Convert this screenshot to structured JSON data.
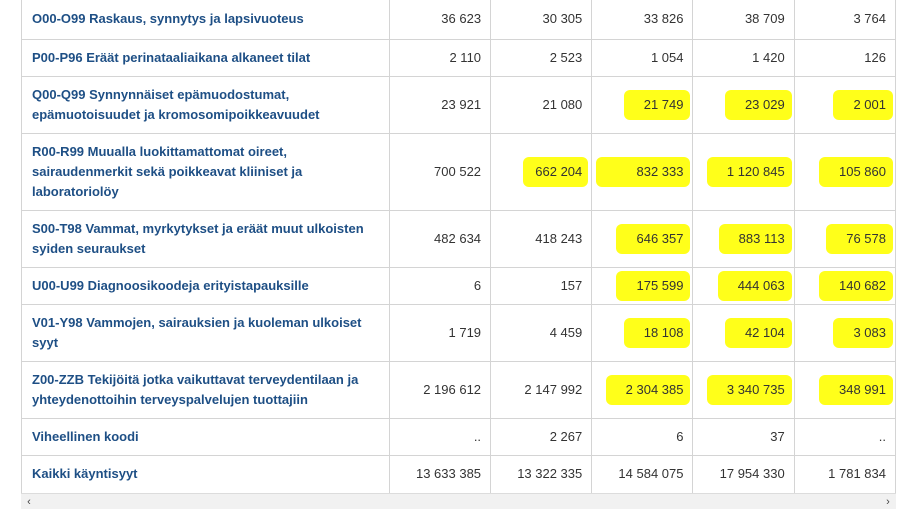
{
  "colors": {
    "label_text": "#1e4f85",
    "number_text": "#333333",
    "highlight": "#ffff1a",
    "border": "#d4d4d4"
  },
  "table": {
    "rows": [
      {
        "label": "O00-O99 Raskaus, synnytys ja lapsivuoteus",
        "values": [
          "36 623",
          "30 305",
          "33 826",
          "38 709",
          "3 764"
        ],
        "highlighted": [
          false,
          false,
          false,
          false,
          false
        ]
      },
      {
        "label": "P00-P96 Eräät perinataaliaikana alkaneet tilat",
        "values": [
          "2 110",
          "2 523",
          "1 054",
          "1 420",
          "126"
        ],
        "highlighted": [
          false,
          false,
          false,
          false,
          false
        ]
      },
      {
        "label": "Q00-Q99 Synnynnäiset epämuodostumat, epämuotoisuudet ja kromosomipoikkeavuudet",
        "values": [
          "23 921",
          "21 080",
          "21 749",
          "23 029",
          "2 001"
        ],
        "highlighted": [
          false,
          false,
          true,
          true,
          true
        ]
      },
      {
        "label": "R00-R99 Muualla luokittamattomat oireet, sairaudenmerkit sekä poikkeavat kliiniset ja laboratoriolöy",
        "values": [
          "700 522",
          "662 204",
          "832 333",
          "1 120 845",
          "105 860"
        ],
        "highlighted": [
          false,
          true,
          true,
          true,
          true
        ]
      },
      {
        "label": "S00-T98 Vammat, myrkytykset ja eräät muut ulkoisten syiden seuraukset",
        "values": [
          "482 634",
          "418 243",
          "646 357",
          "883 113",
          "76 578"
        ],
        "highlighted": [
          false,
          false,
          true,
          true,
          true
        ]
      },
      {
        "label": "U00-U99 Diagnoosikoodeja erityistapauksille",
        "values": [
          "6",
          "157",
          "175 599",
          "444 063",
          "140 682"
        ],
        "highlighted": [
          false,
          false,
          true,
          true,
          true
        ]
      },
      {
        "label": "V01-Y98 Vammojen, sairauksien ja kuoleman ulkoiset syyt",
        "values": [
          "1 719",
          "4 459",
          "18 108",
          "42 104",
          "3 083"
        ],
        "highlighted": [
          false,
          false,
          true,
          true,
          true
        ]
      },
      {
        "label": "Z00-ZZB Tekijöitä jotka vaikuttavat terveydentilaan ja yhteydenottoihin terveyspalvelujen tuottajiin",
        "values": [
          "2 196 612",
          "2 147 992",
          "2 304 385",
          "3 340 735",
          "348 991"
        ],
        "highlighted": [
          false,
          false,
          true,
          true,
          true
        ]
      },
      {
        "label": "Viheellinen koodi",
        "values": [
          "..",
          "2 267",
          "6",
          "37",
          ".."
        ],
        "highlighted": [
          false,
          false,
          false,
          false,
          false
        ]
      },
      {
        "label": "Kaikki käyntisyyt",
        "values": [
          "13 633 385",
          "13 322 335",
          "14 584 075",
          "17 954 330",
          "1 781 834"
        ],
        "highlighted": [
          false,
          false,
          false,
          false,
          false
        ]
      }
    ]
  },
  "scrollbar": {
    "left_arrow": "‹",
    "right_arrow": "›"
  }
}
